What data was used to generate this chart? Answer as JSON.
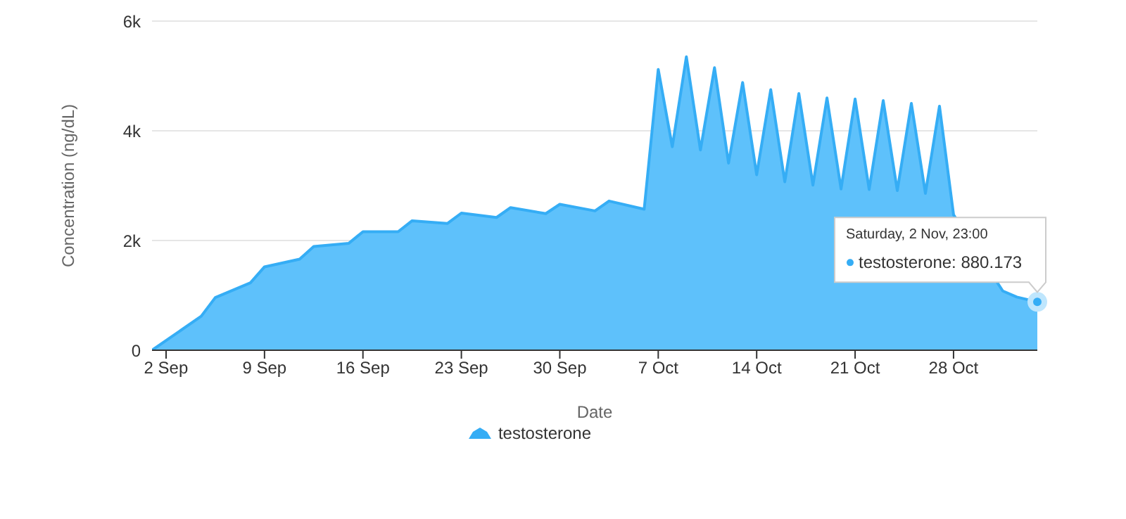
{
  "chart_data": {
    "type": "area",
    "xlabel": "Date",
    "ylabel": "Concentration (ng/dL)",
    "x": [
      "--09-01T00:00",
      "--09-04T12:00",
      "--09-05T12:00",
      "--09-08T00:00",
      "--09-09T00:00",
      "--09-11T12:00",
      "--09-12T12:00",
      "--09-15T00:00",
      "--09-16T00:00",
      "--09-18T12:00",
      "--09-19T12:00",
      "--09-22T00:00",
      "--09-23T00:00",
      "--09-25T12:00",
      "--09-26T12:00",
      "--09-29T00:00",
      "--09-30T00:00",
      "--10-02T12:00",
      "--10-03T12:00",
      "--10-06T00:00",
      "--10-07T00:00",
      "--10-08T00:00",
      "--10-09T00:00",
      "--10-10T00:00",
      "--10-11T00:00",
      "--10-12T00:00",
      "--10-13T00:00",
      "--10-14T00:00",
      "--10-15T00:00",
      "--10-16T00:00",
      "--10-17T00:00",
      "--10-18T00:00",
      "--10-19T00:00",
      "--10-20T00:00",
      "--10-21T00:00",
      "--10-22T00:00",
      "--10-23T00:00",
      "--10-24T00:00",
      "--10-25T00:00",
      "--10-26T00:00",
      "--10-27T00:00",
      "--10-28T00:00",
      "--10-29T00:00",
      "--10-30T12:00",
      "--10-31T12:00",
      "--11-01T12:00",
      "--11-02T23:00"
    ],
    "series": [
      {
        "name": "testosterone",
        "color": "#35adf5",
        "values": [
          0,
          620,
          960,
          1230,
          1520,
          1660,
          1890,
          1950,
          2160,
          2160,
          2360,
          2310,
          2500,
          2420,
          2600,
          2490,
          2660,
          2540,
          2720,
          2570,
          5120,
          3710,
          5350,
          3650,
          5150,
          3410,
          4880,
          3200,
          4750,
          3070,
          4680,
          3010,
          4600,
          2940,
          4580,
          2930,
          4550,
          2910,
          4500,
          2860,
          4450,
          2470,
          null,
          null,
          1080,
          970,
          880.173
        ]
      }
    ],
    "xlim": [
      "--09-01T00:00",
      "--11-02T23:00"
    ],
    "xticks": [
      {
        "value": "--09-02",
        "label": "2 Sep"
      },
      {
        "value": "--09-09",
        "label": "9 Sep"
      },
      {
        "value": "--09-16",
        "label": "16 Sep"
      },
      {
        "value": "--09-23",
        "label": "23 Sep"
      },
      {
        "value": "--09-30",
        "label": "30 Sep"
      },
      {
        "value": "--10-07",
        "label": "7 Oct"
      },
      {
        "value": "--10-14",
        "label": "14 Oct"
      },
      {
        "value": "--10-21",
        "label": "21 Oct"
      },
      {
        "value": "--10-28",
        "label": "28 Oct"
      }
    ],
    "ylim": [
      0,
      6000
    ],
    "yticks": [
      0,
      {
        "value": 2000,
        "label": "2k"
      },
      {
        "value": 4000,
        "label": "4k"
      },
      {
        "value": 6000,
        "label": "6k"
      }
    ],
    "grid": "y",
    "legend": "bottom",
    "marker": "none",
    "line_style": "solid",
    "annotations": [
      "Saturday, 2 Nov, 23:00",
      "testosterone: 880.173"
    ]
  }
}
